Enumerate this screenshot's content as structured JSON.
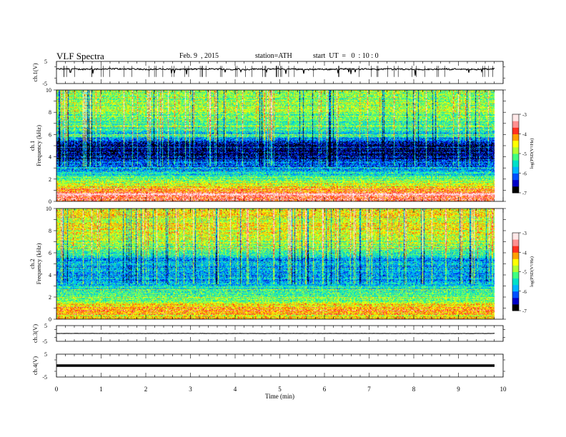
{
  "header": {
    "title": "VLF Spectra",
    "date": "Feb. 9  , 2015",
    "station": "station=ATH",
    "start": "start  UT  =   0  : 10 : 0"
  },
  "colors": {
    "background": "#ffffff",
    "axis": "#000000",
    "colormap": [
      "#000000",
      "#0000c8",
      "#0050ff",
      "#00b4ff",
      "#00e0c8",
      "#40ff80",
      "#b0ff30",
      "#ffff00",
      "#ffa000",
      "#ff3020",
      "#ff9090",
      "#ffe8e8"
    ]
  },
  "chart_data": [
    {
      "id": "ch1-waveform",
      "type": "line",
      "ylabel": "ch.1(V)",
      "yticks": [
        "5",
        "-5"
      ],
      "ylim": [
        -5,
        5
      ],
      "xlim": [
        0,
        10
      ],
      "series_level": 1.5,
      "series_noise": 0.6,
      "data_end": 9.8
    },
    {
      "id": "ch1-spectrogram",
      "type": "heatmap",
      "ylabel": "ch.1\nFrequency  (kHz)",
      "yticks": [
        "0",
        "2",
        "4",
        "6",
        "8",
        "10"
      ],
      "ylim": [
        0,
        10
      ],
      "xlim": [
        0,
        10
      ],
      "data_end": 9.8,
      "colorbar": {
        "label": "log(PSD(V²/Hz)",
        "ticks": [
          "-3",
          "-4",
          "-5",
          "-6",
          "-7"
        ],
        "range": [
          -7,
          -3
        ]
      },
      "profile": [
        {
          "f": 0.3,
          "level": 0.82
        },
        {
          "f": 0.6,
          "level": 0.95
        },
        {
          "f": 1.0,
          "level": 0.72
        },
        {
          "f": 1.5,
          "level": 0.6
        },
        {
          "f": 2.0,
          "level": 0.5
        },
        {
          "f": 2.5,
          "level": 0.35
        },
        {
          "f": 3.0,
          "level": 0.28
        },
        {
          "f": 4.0,
          "level": 0.1
        },
        {
          "f": 5.0,
          "level": 0.1
        },
        {
          "f": 5.8,
          "level": 0.3
        },
        {
          "f": 6.5,
          "level": 0.42
        },
        {
          "f": 8.0,
          "level": 0.52
        },
        {
          "f": 10.0,
          "level": 0.55
        }
      ]
    },
    {
      "id": "ch2-spectrogram",
      "type": "heatmap",
      "ylabel": "ch.2\nFrequency  (kHz)",
      "yticks": [
        "0",
        "2",
        "4",
        "6",
        "8",
        "10"
      ],
      "ylim": [
        0,
        10
      ],
      "xlim": [
        0,
        10
      ],
      "data_end": 9.8,
      "colorbar": {
        "label": "log(PSD(V²/Hz)",
        "ticks": [
          "-3",
          "-4",
          "-5",
          "-6",
          "-7"
        ],
        "range": [
          -7,
          -3
        ]
      },
      "profile": [
        {
          "f": 0.3,
          "level": 0.62
        },
        {
          "f": 0.6,
          "level": 0.7
        },
        {
          "f": 1.0,
          "level": 0.72
        },
        {
          "f": 1.5,
          "level": 0.55
        },
        {
          "f": 2.0,
          "level": 0.5
        },
        {
          "f": 2.5,
          "level": 0.42
        },
        {
          "f": 3.0,
          "level": 0.35
        },
        {
          "f": 4.0,
          "level": 0.25
        },
        {
          "f": 5.0,
          "level": 0.28
        },
        {
          "f": 5.8,
          "level": 0.35
        },
        {
          "f": 6.5,
          "level": 0.52
        },
        {
          "f": 8.0,
          "level": 0.6
        },
        {
          "f": 10.0,
          "level": 0.62
        }
      ]
    },
    {
      "id": "ch3-waveform",
      "type": "line",
      "ylabel": "ch.3(V)",
      "yticks": [
        "5",
        "-5"
      ],
      "ylim": [
        -5,
        5
      ],
      "xlim": [
        0,
        10
      ],
      "series_level": 0.0,
      "series_noise": 0.15,
      "data_end": 9.8
    },
    {
      "id": "ch4-waveform",
      "type": "line",
      "ylabel": "ch.4(V)",
      "yticks": [
        "5",
        "-5"
      ],
      "ylim": [
        -5,
        5
      ],
      "xlim": [
        0,
        10
      ],
      "series_level": 0.0,
      "series_noise": 0.0,
      "data_end": 9.8
    }
  ],
  "xaxis": {
    "label": "Time  (min)",
    "ticks": [
      "0",
      "1",
      "2",
      "3",
      "4",
      "5",
      "6",
      "7",
      "8",
      "9",
      "10"
    ],
    "range": [
      0,
      10
    ]
  }
}
